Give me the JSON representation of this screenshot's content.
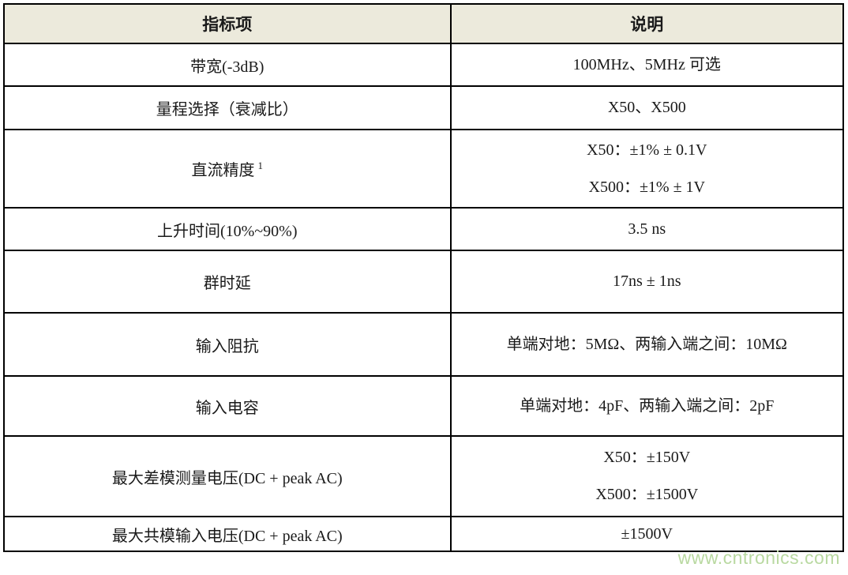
{
  "table": {
    "headers": {
      "item": "指标项",
      "description": "说明"
    },
    "rows": [
      {
        "item": "带宽(-3dB)",
        "desc": [
          "100MHz、5MHz 可选"
        ]
      },
      {
        "item": "量程选择（衰减比）",
        "desc": [
          "X50、X500"
        ]
      },
      {
        "item": "直流精度",
        "item_sup": "1",
        "desc": [
          "X50：±1% ± 0.1V",
          "X500：±1% ± 1V"
        ]
      },
      {
        "item": "上升时间(10%~90%)",
        "desc": [
          "3.5 ns"
        ]
      },
      {
        "item": "群时延",
        "desc": [
          "17ns ± 1ns"
        ]
      },
      {
        "item": "输入阻抗",
        "desc": [
          "单端对地：5MΩ、两输入端之间：10MΩ"
        ]
      },
      {
        "item": "输入电容",
        "desc": [
          "单端对地：4pF、两输入端之间：2pF"
        ]
      },
      {
        "item": "最大差模测量电压(DC + peak AC)",
        "desc": [
          "X50：±150V",
          "X500：±1500V"
        ]
      },
      {
        "item": "最大共模输入电压(DC + peak AC)",
        "desc": [
          "±1500V"
        ]
      }
    ]
  },
  "watermark": {
    "text": "www.cntronics.com"
  },
  "colors": {
    "header_background": "#eceadc",
    "border": "#000000",
    "text": "#1a1a1a",
    "watermark": "#b9d9a1"
  }
}
